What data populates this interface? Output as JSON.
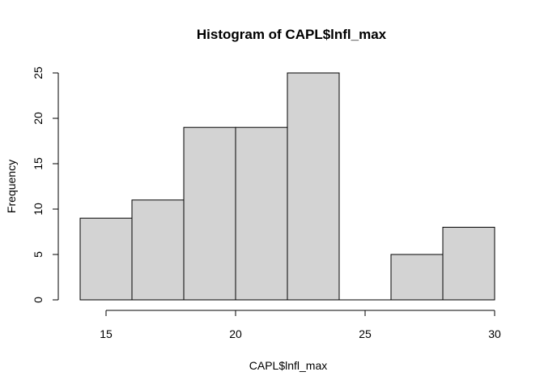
{
  "chart_data": {
    "type": "histogram",
    "title": "Histogram of CAPL$lnfl_max",
    "xlabel": "CAPL$lnfl_max",
    "ylabel": "Frequency",
    "bins": [
      {
        "from": 14,
        "to": 16,
        "count": 9
      },
      {
        "from": 16,
        "to": 18,
        "count": 11
      },
      {
        "from": 18,
        "to": 20,
        "count": 19
      },
      {
        "from": 20,
        "to": 22,
        "count": 19
      },
      {
        "from": 22,
        "to": 24,
        "count": 25
      },
      {
        "from": 24,
        "to": 26,
        "count": 0
      },
      {
        "from": 26,
        "to": 28,
        "count": 5
      },
      {
        "from": 28,
        "to": 30,
        "count": 8
      }
    ],
    "x_ticks": [
      15,
      20,
      25,
      30
    ],
    "y_ticks": [
      0,
      5,
      10,
      15,
      20,
      25
    ],
    "xlim": [
      14,
      30
    ],
    "ylim": [
      0,
      25
    ],
    "grid": false,
    "colors": {
      "bar_fill": "#d3d3d3",
      "bar_stroke": "#000000",
      "axis": "#000000"
    }
  }
}
